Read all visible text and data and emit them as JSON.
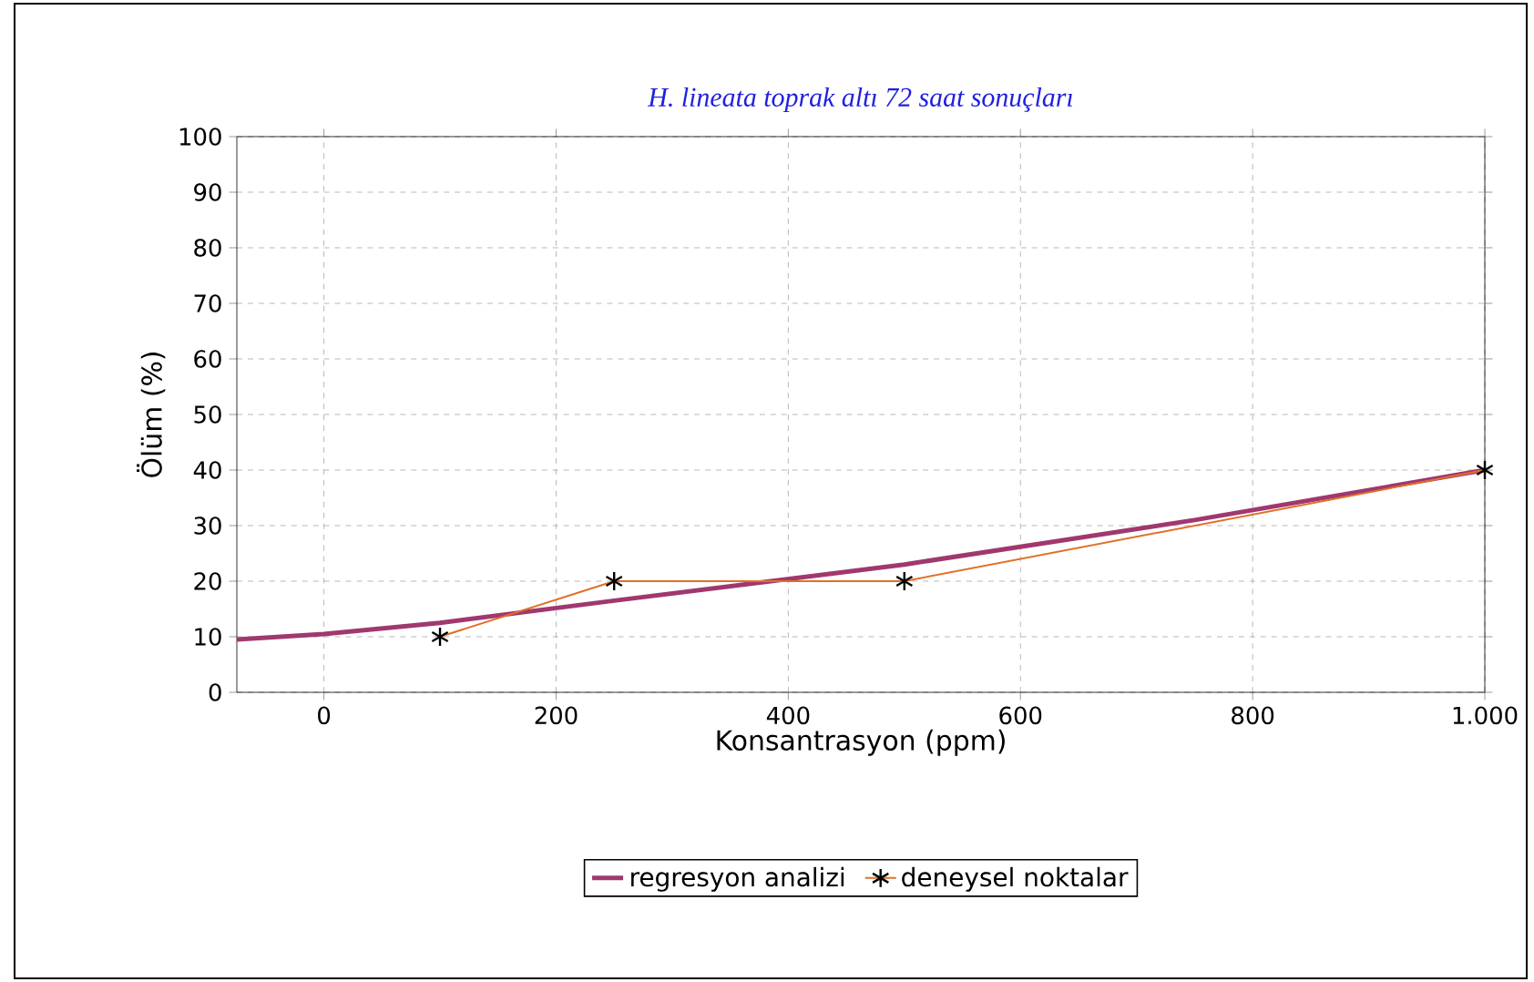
{
  "chart_data": {
    "type": "line",
    "title": "H. lineata toprak altı 72 saat sonuçları",
    "xlabel": "Konsantrasyon (ppm)",
    "ylabel": "Ölüm (%)",
    "series": [
      {
        "name": "regresyon analizi",
        "color": "#a0386e",
        "x": [
          -75,
          0,
          100,
          250,
          500,
          750,
          1000
        ],
        "values": [
          9.5,
          10.5,
          12.5,
          16.5,
          23,
          31,
          40
        ]
      },
      {
        "name": "deneysel noktalar",
        "color": "#e07028",
        "x": [
          100,
          250,
          500,
          1000
        ],
        "values": [
          10,
          20,
          20,
          40
        ],
        "marker": "cross"
      }
    ],
    "xlim": [
      -75,
      1000
    ],
    "ylim": [
      0,
      100
    ],
    "xticks": [
      0,
      200,
      400,
      600,
      800,
      {
        "value": 1000,
        "label": "1.000"
      }
    ],
    "yticks": [
      0,
      10,
      20,
      30,
      40,
      50,
      60,
      70,
      80,
      90,
      100
    ],
    "grid": true,
    "legend": "bottom"
  }
}
